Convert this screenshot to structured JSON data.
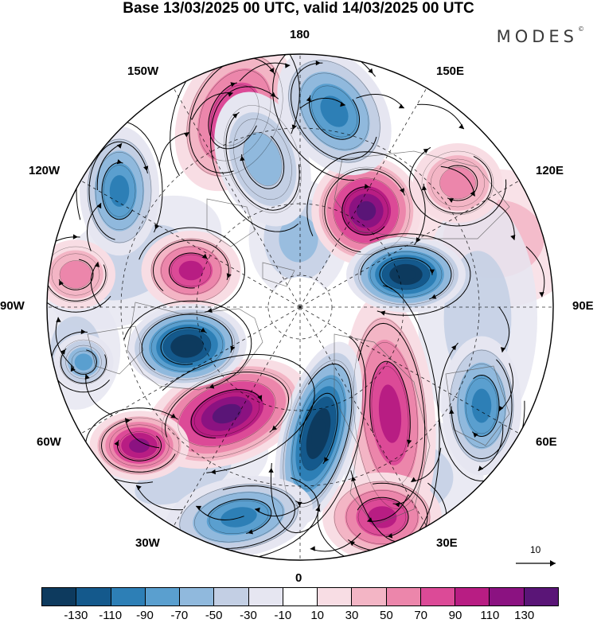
{
  "title": "Base 13/03/2025 00 UTC, valid 14/03/2025 00 UTC",
  "brand": "MODES",
  "brand_mark": "©",
  "longitude_labels": {
    "top": "180",
    "bottom": "0",
    "left": "90W",
    "right": "90E",
    "upper_left": "150W",
    "upper_right": "150E",
    "mid_upper_left": "120W",
    "mid_upper_right": "120E",
    "mid_lower_left": "60W",
    "mid_lower_right": "60E",
    "lower_left": "30W",
    "lower_right": "30E"
  },
  "reference_vector_label": "10",
  "colorbar": {
    "colors": [
      "#0d3a5e",
      "#14598c",
      "#2d7fb6",
      "#5a9fcf",
      "#90b9dd",
      "#c3cfe4",
      "#e6e6f1",
      "#ffffff",
      "#f8dde4",
      "#f3b5c5",
      "#ec86ab",
      "#dc4a97",
      "#b81d83",
      "#8b1281",
      "#5a1577"
    ],
    "ticks": [
      "-130",
      "-110",
      "-90",
      "-70",
      "-50",
      "-30",
      "-10",
      "10",
      "30",
      "50",
      "70",
      "90",
      "110",
      "130"
    ]
  },
  "map_style": {
    "land_outline": "#5a5a5a",
    "streamline_color": "#000000",
    "graticule_color": "#000000"
  }
}
